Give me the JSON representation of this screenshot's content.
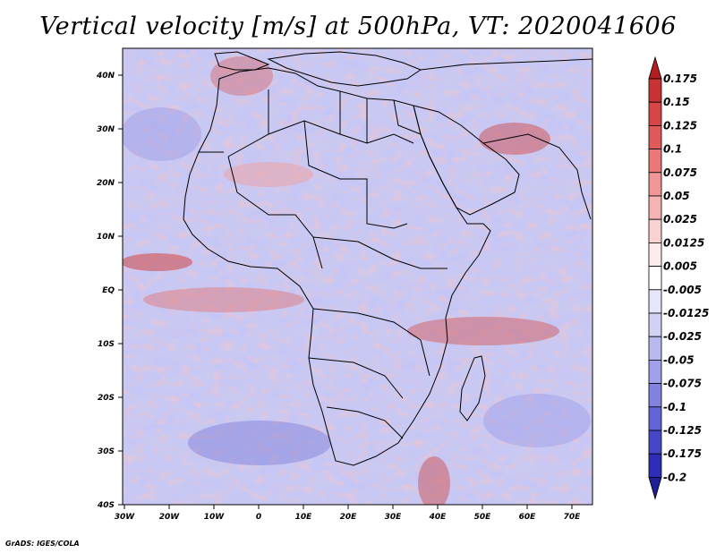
{
  "title": "Vertical velocity [m/s] at 500hPa, VT: 2020041606",
  "footer": "GrADS: IGES/COLA",
  "axes": {
    "y_ticks": [
      "40N",
      "30N",
      "20N",
      "10N",
      "EQ",
      "10S",
      "20S",
      "30S",
      "40S"
    ],
    "x_ticks": [
      "30W",
      "20W",
      "10W",
      "0",
      "10E",
      "20E",
      "30E",
      "40E",
      "50E",
      "60E",
      "70E"
    ]
  },
  "colorbar": {
    "labels": [
      "0.175",
      "0.15",
      "0.125",
      "0.1",
      "0.075",
      "0.05",
      "0.025",
      "0.0125",
      "0.005",
      "-0.005",
      "-0.0125",
      "-0.025",
      "-0.05",
      "-0.075",
      "-0.1",
      "-0.125",
      "-0.175",
      "-0.2"
    ],
    "colors": [
      "#b41e1e",
      "#c83232",
      "#d74646",
      "#e15a5a",
      "#ea7878",
      "#f09696",
      "#f5b4b4",
      "#f9d2d2",
      "#fdecec",
      "#ffffff",
      "#e6e6fa",
      "#d2d2f5",
      "#b9b9f0",
      "#a0a0eb",
      "#8282e1",
      "#6464d7",
      "#4646c8",
      "#2d2db9",
      "#1e1e96"
    ]
  }
}
